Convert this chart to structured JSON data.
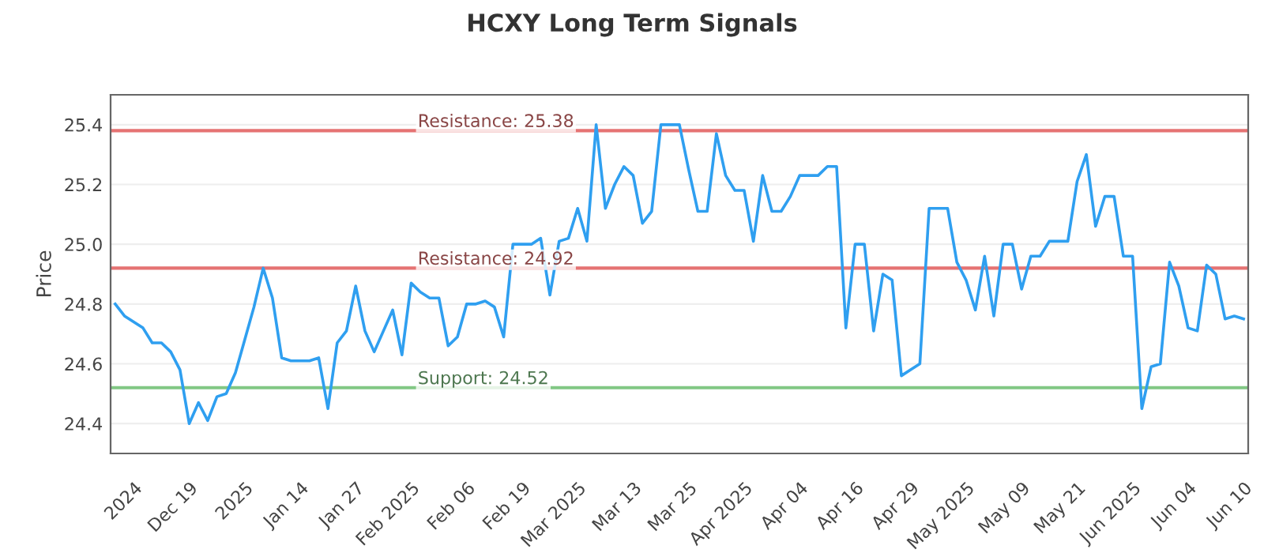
{
  "chart_data": {
    "type": "line",
    "title": "HCXY Long Term Signals",
    "ylabel": "Price",
    "categories": [
      null,
      null,
      "2024",
      null,
      null,
      null,
      null,
      null,
      "Dec 19",
      null,
      null,
      null,
      null,
      null,
      "2025",
      null,
      null,
      null,
      null,
      null,
      "Jan 14",
      null,
      null,
      null,
      null,
      null,
      "Jan 27",
      null,
      null,
      null,
      null,
      null,
      "Feb 2025",
      null,
      null,
      null,
      null,
      null,
      "Feb 06",
      null,
      null,
      null,
      null,
      null,
      "Feb 19",
      null,
      null,
      null,
      null,
      null,
      "Mar 2025",
      null,
      null,
      null,
      null,
      null,
      "Mar 13",
      null,
      null,
      null,
      null,
      null,
      "Mar 25",
      null,
      null,
      null,
      null,
      null,
      "Apr 2025",
      null,
      null,
      null,
      null,
      null,
      "Apr 04",
      null,
      null,
      null,
      null,
      null,
      "Apr 16",
      null,
      null,
      null,
      null,
      null,
      "Apr 29",
      null,
      null,
      null,
      null,
      null,
      "May 2025",
      null,
      null,
      null,
      null,
      null,
      "May 09",
      null,
      null,
      null,
      null,
      null,
      "May 21",
      null,
      null,
      null,
      null,
      null,
      "Jun 2025",
      null,
      null,
      null,
      null,
      null,
      "Jun 04",
      null,
      null,
      null,
      null,
      null,
      "Jun 10"
    ],
    "series": [
      {
        "color": "#2f9ff0",
        "values": [
          24.8,
          24.76,
          24.74,
          24.72,
          24.67,
          24.67,
          24.64,
          24.58,
          24.4,
          24.47,
          24.41,
          24.49,
          24.5,
          24.57,
          24.68,
          24.79,
          24.92,
          24.82,
          24.62,
          24.61,
          24.61,
          24.61,
          24.62,
          24.45,
          24.67,
          24.71,
          24.86,
          24.71,
          24.64,
          24.71,
          24.78,
          24.63,
          24.87,
          24.84,
          24.82,
          24.82,
          24.66,
          24.69,
          24.8,
          24.8,
          24.81,
          24.79,
          24.69,
          25.0,
          25.0,
          25.0,
          25.02,
          24.83,
          25.01,
          25.02,
          25.12,
          25.01,
          25.4,
          25.12,
          25.2,
          25.26,
          25.23,
          25.07,
          25.11,
          25.4,
          25.4,
          25.4,
          25.25,
          25.11,
          25.11,
          25.37,
          25.23,
          25.18,
          25.18,
          25.01,
          25.23,
          25.11,
          25.11,
          25.16,
          25.23,
          25.23,
          25.23,
          25.26,
          25.26,
          24.72,
          25.0,
          25.0,
          24.71,
          24.9,
          24.88,
          24.56,
          24.58,
          24.6,
          25.12,
          25.12,
          25.12,
          24.94,
          24.88,
          24.78,
          24.96,
          24.76,
          25.0,
          25.0,
          24.85,
          24.96,
          24.96,
          25.01,
          25.01,
          25.01,
          25.21,
          25.3,
          25.06,
          25.16,
          25.16,
          24.96,
          24.96,
          24.45,
          24.59,
          24.6,
          24.94,
          24.86,
          24.72,
          24.71,
          24.93,
          24.9,
          24.75,
          24.76,
          24.75
        ]
      }
    ],
    "ylim": [
      24.3,
      25.5
    ],
    "yticks": [
      24.4,
      24.6,
      24.8,
      {
        "value": 25.0,
        "label": "25.0"
      },
      25.2,
      25.4
    ],
    "grid": "y",
    "marker": "none",
    "line_style": "solid",
    "ref_lines": [
      {
        "axis": "y",
        "value": 25.38,
        "label": "Resistance: 25.38",
        "color": "#e57373"
      },
      {
        "axis": "y",
        "value": 24.92,
        "label": "Resistance: 24.92",
        "color": "#e57373"
      },
      {
        "axis": "y",
        "value": 24.52,
        "label": "Support: 24.52",
        "color": "#81c784"
      }
    ]
  }
}
